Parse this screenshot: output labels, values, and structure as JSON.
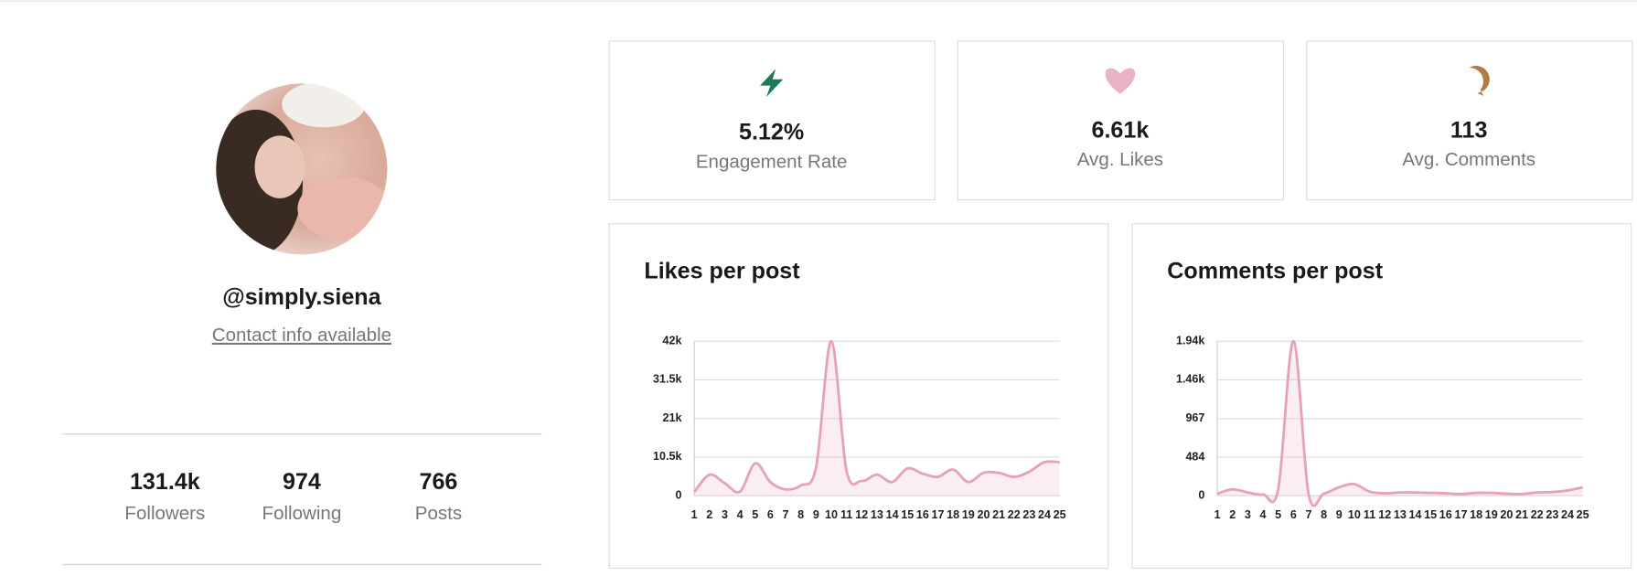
{
  "profile": {
    "handle": "@simply.siena",
    "contact": "Contact info available",
    "stats": [
      {
        "value": "131.4k",
        "label": "Followers"
      },
      {
        "value": "974",
        "label": "Following"
      },
      {
        "value": "766",
        "label": "Posts"
      }
    ]
  },
  "metrics": [
    {
      "value": "5.12%",
      "label": "Engagement Rate"
    },
    {
      "value": "6.61k",
      "label": "Avg. Likes"
    },
    {
      "value": "113",
      "label": "Avg. Comments"
    }
  ],
  "chart_data": [
    {
      "type": "line",
      "title": "Likes per post",
      "categories": [
        "1",
        "2",
        "3",
        "4",
        "5",
        "6",
        "7",
        "8",
        "9",
        "10",
        "11",
        "12",
        "13",
        "14",
        "15",
        "16",
        "17",
        "18",
        "19",
        "20",
        "21",
        "22",
        "23",
        "24",
        "25"
      ],
      "series": [
        {
          "name": "Likes",
          "color": "#e6a3b6",
          "values": [
            1000,
            5700,
            3400,
            1100,
            8800,
            3700,
            1700,
            2800,
            7700,
            42000,
            6800,
            4000,
            5700,
            3700,
            7400,
            6000,
            5100,
            7100,
            3700,
            6200,
            6200,
            5100,
            6500,
            9100,
            9100
          ]
        }
      ],
      "ylim": [
        0,
        42000
      ],
      "yticks": [
        0,
        {
          "value": 10500,
          "label": "10.5k"
        },
        {
          "value": 21000,
          "label": "21k"
        },
        {
          "value": 31500,
          "label": "31.5k"
        },
        {
          "value": 42000,
          "label": "42k"
        }
      ],
      "grid": true
    },
    {
      "type": "line",
      "title": "Comments per post",
      "categories": [
        "1",
        "2",
        "3",
        "4",
        "5",
        "6",
        "7",
        "8",
        "9",
        "10",
        "11",
        "12",
        "13",
        "14",
        "15",
        "16",
        "17",
        "18",
        "19",
        "20",
        "21",
        "22",
        "23",
        "24",
        "25"
      ],
      "series": [
        {
          "name": "Comments",
          "color": "#e6a3b6",
          "values": [
            25,
            80,
            40,
            15,
            80,
            1940,
            15,
            25,
            105,
            145,
            50,
            30,
            40,
            40,
            35,
            30,
            20,
            35,
            35,
            25,
            20,
            40,
            45,
            65,
            105
          ]
        }
      ],
      "ylim": [
        0,
        1940
      ],
      "yticks": [
        0,
        484,
        967,
        {
          "value": 1455,
          "label": "1.46k"
        },
        {
          "value": 1940,
          "label": "1.94k"
        }
      ],
      "grid": true
    }
  ]
}
